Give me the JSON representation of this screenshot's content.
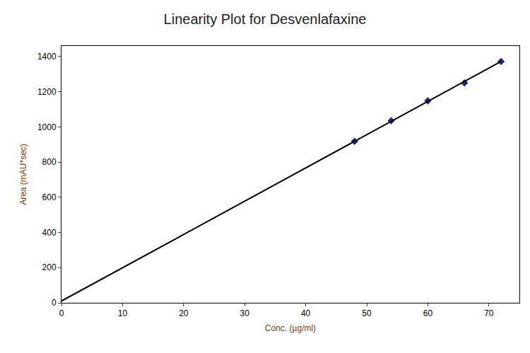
{
  "chart_data": {
    "type": "scatter",
    "title": "Linearity Plot for Desvenlafaxine",
    "x_label": "Conc. (µg/ml)",
    "y_label": "Area (mAU*sec)",
    "series": [
      {
        "type": "scatter",
        "marker": "diamond",
        "color": "#1c2a7a",
        "x": [
          48,
          54,
          60,
          66,
          72
        ],
        "values": [
          918,
          1035,
          1148,
          1250,
          1372
        ]
      },
      {
        "type": "line",
        "line_style": "solid",
        "color": "#000000",
        "x": [
          0,
          72
        ],
        "values": [
          10,
          1372
        ]
      }
    ],
    "xlim": [
      0,
      75
    ],
    "xticks": [
      0,
      10,
      20,
      30,
      40,
      50,
      60,
      70
    ],
    "ylim": [
      0,
      1460
    ],
    "yticks": [
      0,
      200,
      400,
      600,
      800,
      1000,
      1200,
      1400
    ],
    "grid": false
  }
}
